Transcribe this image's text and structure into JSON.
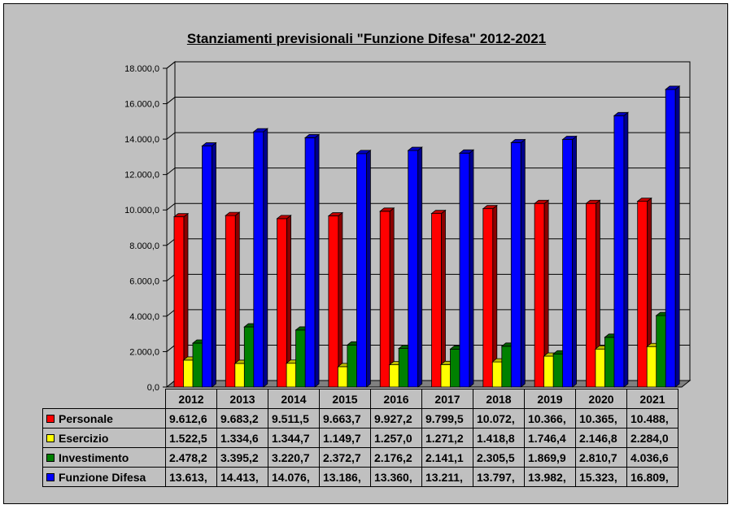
{
  "chart_data": {
    "type": "bar",
    "title": "Stanziamenti previsionali \"Funzione Difesa\" 2012-2021",
    "categories": [
      "2012",
      "2013",
      "2014",
      "2015",
      "2016",
      "2017",
      "2018",
      "2019",
      "2020",
      "2021"
    ],
    "series": [
      {
        "name": "Personale",
        "color": "#ff0000",
        "values": [
          9612.6,
          9683.2,
          9511.5,
          9663.7,
          9927.2,
          9799.5,
          10072,
          10366,
          10365,
          10488
        ],
        "labels": [
          "9.612,6",
          "9.683,2",
          "9.511,5",
          "9.663,7",
          "9.927,2",
          "9.799,5",
          "10.072,",
          "10.366,",
          "10.365,",
          "10.488,"
        ]
      },
      {
        "name": "Esercizio",
        "color": "#ffff00",
        "values": [
          1522.5,
          1334.6,
          1344.7,
          1149.7,
          1257.0,
          1271.2,
          1418.8,
          1746.4,
          2146.8,
          2284.0
        ],
        "labels": [
          "1.522,5",
          "1.334,6",
          "1.344,7",
          "1.149,7",
          "1.257,0",
          "1.271,2",
          "1.418,8",
          "1.746,4",
          "2.146,8",
          "2.284,0"
        ]
      },
      {
        "name": "Investimento",
        "color": "#008000",
        "values": [
          2478.2,
          3395.2,
          3220.7,
          2372.7,
          2176.2,
          2141.1,
          2305.5,
          1869.9,
          2810.7,
          4036.6
        ],
        "labels": [
          "2.478,2",
          "3.395,2",
          "3.220,7",
          "2.372,7",
          "2.176,2",
          "2.141,1",
          "2.305,5",
          "1.869,9",
          "2.810,7",
          "4.036,6"
        ]
      },
      {
        "name": "Funzione Difesa",
        "color": "#0000ff",
        "values": [
          13613,
          14413,
          14076,
          13186,
          13360,
          13211,
          13797,
          13982,
          15323,
          16809
        ],
        "labels": [
          "13.613,",
          "14.413,",
          "14.076,",
          "13.186,",
          "13.360,",
          "13.211,",
          "13.797,",
          "13.982,",
          "15.323,",
          "16.809,"
        ]
      }
    ],
    "ylim": [
      0,
      18000
    ],
    "yticks": [
      0,
      2000,
      4000,
      6000,
      8000,
      10000,
      12000,
      14000,
      16000,
      18000
    ],
    "ytick_labels": [
      "0,0",
      "2.000,0",
      "4.000,0",
      "6.000,0",
      "8.000,0",
      "10.000,0",
      "12.000,0",
      "14.000,0",
      "16.000,0",
      "18.000,0"
    ],
    "grid": true,
    "legend": "data table below the chart",
    "background": "#c0c0c0"
  }
}
